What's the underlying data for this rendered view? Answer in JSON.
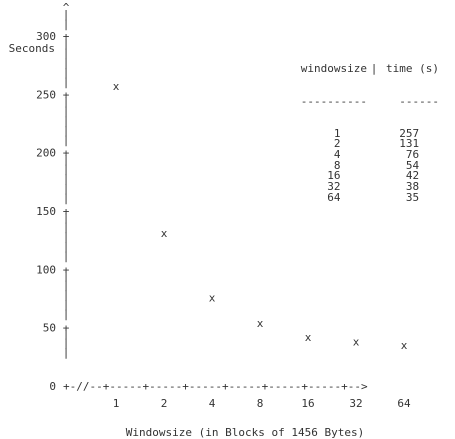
{
  "chart_data": {
    "type": "scatter",
    "title": "",
    "ylabel": "Seconds",
    "xlabel": "Windowsize (in Blocks of 1456 Bytes)",
    "x_axis_glyph": "+-//--+-----+-----+-----+-----+-----+-----+-->",
    "y_axis_arrow": "^",
    "y_axis_bar": "|",
    "y_axis_plus": "+",
    "categories": [
      "1",
      "2",
      "4",
      "8",
      "16",
      "32",
      "64"
    ],
    "values": [
      257,
      131,
      76,
      54,
      42,
      38,
      35
    ],
    "marker": "x",
    "ylim": [
      0,
      300
    ],
    "yticks": [
      "0",
      "50",
      "100",
      "150",
      "200",
      "250",
      "300"
    ],
    "table": {
      "headers": [
        "windowsize",
        "|",
        "time (s)"
      ],
      "underline": [
        "----------",
        "------"
      ],
      "rows": [
        [
          "1",
          "257"
        ],
        [
          "2",
          "131"
        ],
        [
          "4",
          "76"
        ],
        [
          "8",
          "54"
        ],
        [
          "16",
          "42"
        ],
        [
          "32",
          "38"
        ],
        [
          "64",
          "35"
        ]
      ]
    }
  }
}
